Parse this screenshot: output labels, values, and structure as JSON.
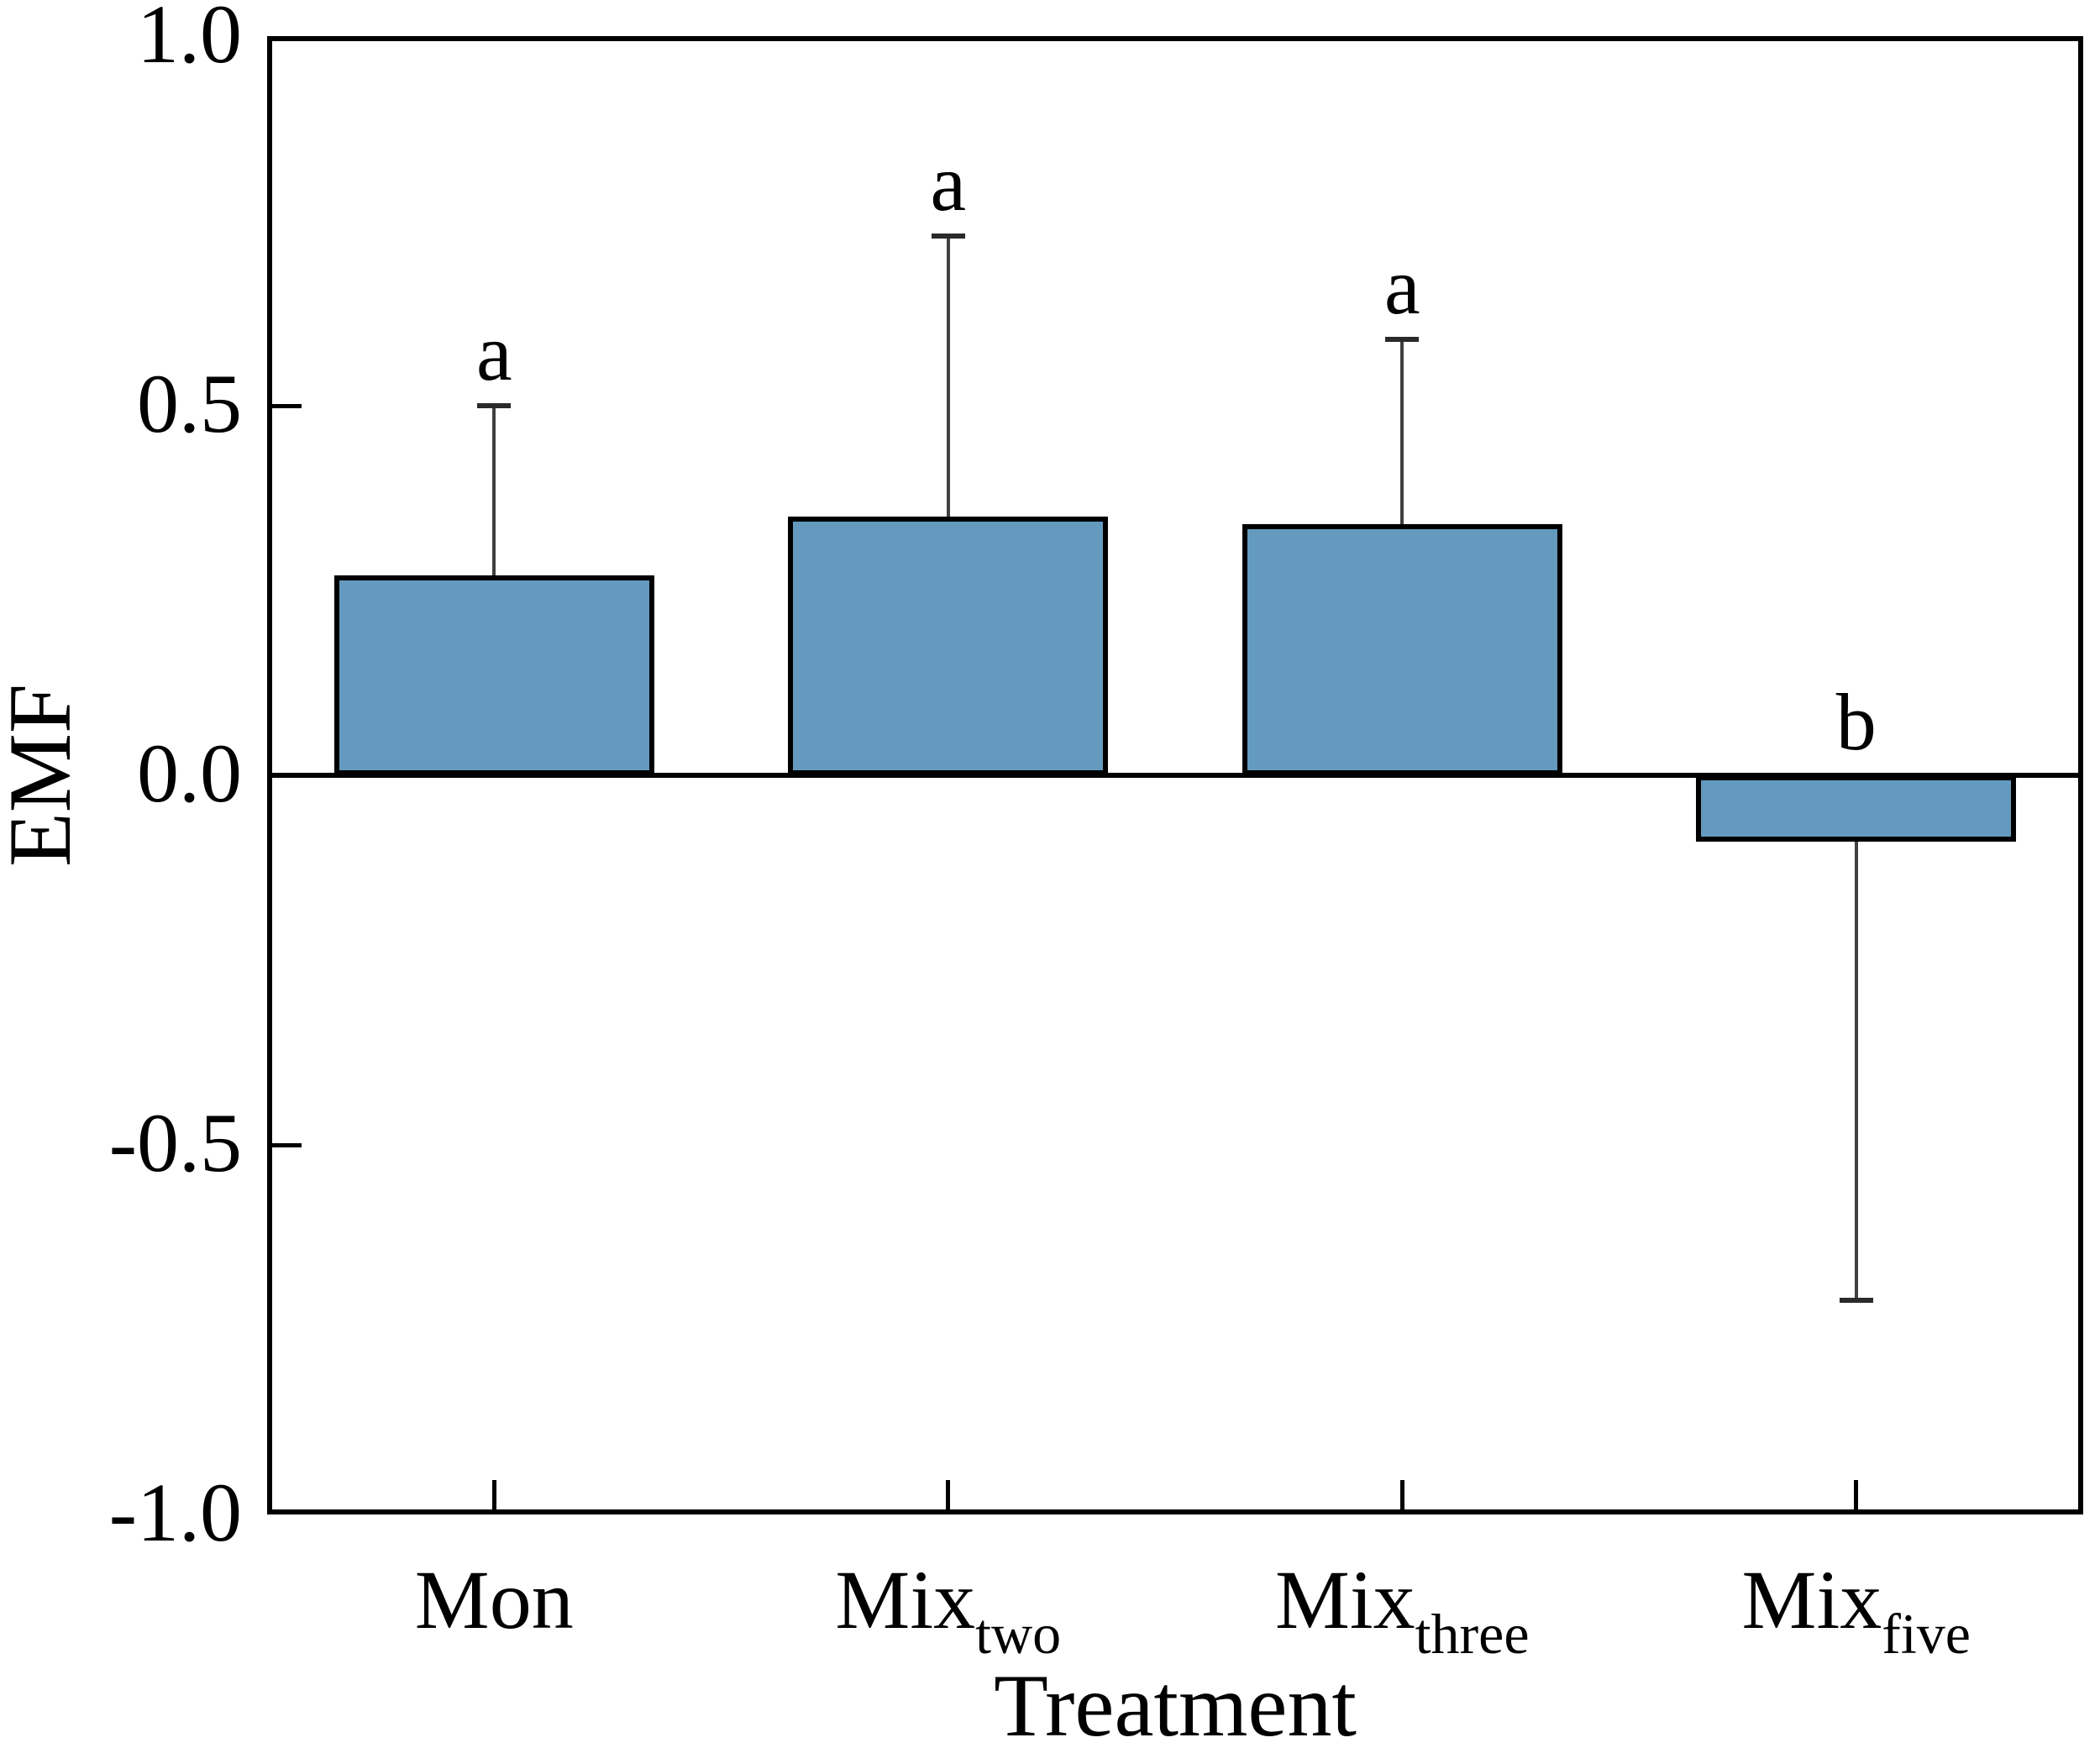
{
  "figure": {
    "background_color": "#ffffff"
  },
  "chart_data": {
    "type": "bar",
    "title": "",
    "xlabel": "Treatment",
    "ylabel": "EMF",
    "ylim": [
      -1.0,
      1.0
    ],
    "grid": false,
    "legend": null,
    "zero_line": true,
    "bar_color": "#649ABE",
    "bar_border_color": "#000000",
    "error_bar_color": "#404040",
    "yticks": [
      {
        "label": "1.0",
        "value": 1.0,
        "tick_mark": false
      },
      {
        "label": "0.5",
        "value": 0.5,
        "tick_mark": true
      },
      {
        "label": "0.0",
        "value": 0.0,
        "tick_mark": false
      },
      {
        "label": "-0.5",
        "value": -0.5,
        "tick_mark": true
      },
      {
        "label": "-1.0",
        "value": -1.0,
        "tick_mark": false
      }
    ],
    "categories": [
      {
        "main": "Mon",
        "subscript": ""
      },
      {
        "main": "Mix",
        "subscript": "two"
      },
      {
        "main": "Mix",
        "subscript": "three"
      },
      {
        "main": "Mix",
        "subscript": "five"
      }
    ],
    "series": [
      {
        "name": "EMF",
        "values": [
          0.27,
          0.35,
          0.34,
          -0.09
        ],
        "errors_sd": [
          0.23,
          0.38,
          0.25,
          0.62
        ],
        "significance_letters": [
          "a",
          "a",
          "a",
          "b"
        ]
      }
    ]
  }
}
